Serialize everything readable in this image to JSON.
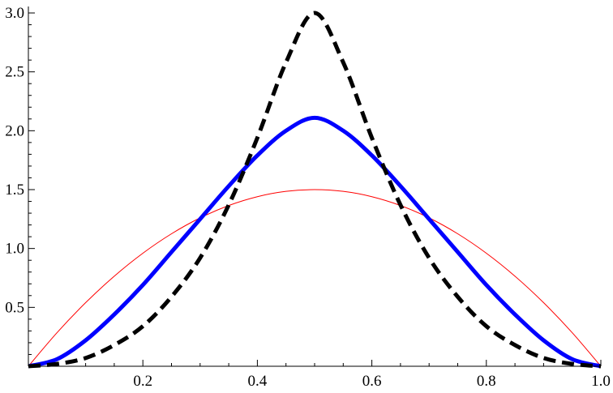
{
  "chart_data": {
    "type": "line",
    "title": "",
    "xlabel": "",
    "ylabel": "",
    "xlim": [
      0.0,
      1.0
    ],
    "ylim": [
      0.0,
      3.0
    ],
    "grid": false,
    "legend": "none",
    "x_ticks": [
      {
        "value": 0.2,
        "label": "0.2"
      },
      {
        "value": 0.4,
        "label": "0.4"
      },
      {
        "value": 0.6,
        "label": "0.6"
      },
      {
        "value": 0.8,
        "label": "0.8"
      },
      {
        "value": 1.0,
        "label": "1.0"
      }
    ],
    "y_ticks": [
      {
        "value": 0.5,
        "label": "0.5"
      },
      {
        "value": 1.0,
        "label": "1.0"
      },
      {
        "value": 1.5,
        "label": "1.5"
      },
      {
        "value": 2.0,
        "label": "2.0"
      },
      {
        "value": 2.5,
        "label": "2.5"
      },
      {
        "value": 3.0,
        "label": "3.0"
      }
    ],
    "x": [
      0.0,
      0.05,
      0.1,
      0.15,
      0.2,
      0.25,
      0.3,
      0.35,
      0.4,
      0.45,
      0.5,
      0.55,
      0.6,
      0.65,
      0.7,
      0.75,
      0.8,
      0.85,
      0.9,
      0.95,
      1.0
    ],
    "series": [
      {
        "color": "#ff0000",
        "style": "thin-solid",
        "values": [
          0.0,
          0.285,
          0.54,
          0.765,
          0.96,
          1.125,
          1.26,
          1.365,
          1.44,
          1.485,
          1.5,
          1.485,
          1.44,
          1.365,
          1.26,
          1.125,
          0.96,
          0.765,
          0.54,
          0.285,
          0.0
        ]
      },
      {
        "color": "#0000ff",
        "style": "thick-solid",
        "values": [
          0.0,
          0.06,
          0.22,
          0.44,
          0.69,
          0.97,
          1.25,
          1.53,
          1.79,
          2.0,
          2.11,
          2.0,
          1.79,
          1.53,
          1.25,
          0.97,
          0.69,
          0.44,
          0.22,
          0.06,
          0.0
        ]
      },
      {
        "color": "#000000",
        "style": "thick-dashed",
        "values": [
          0.0,
          0.02,
          0.07,
          0.18,
          0.34,
          0.59,
          0.92,
          1.37,
          1.94,
          2.58,
          3.0,
          2.58,
          1.94,
          1.37,
          0.92,
          0.59,
          0.34,
          0.18,
          0.07,
          0.02,
          0.0
        ]
      }
    ]
  }
}
